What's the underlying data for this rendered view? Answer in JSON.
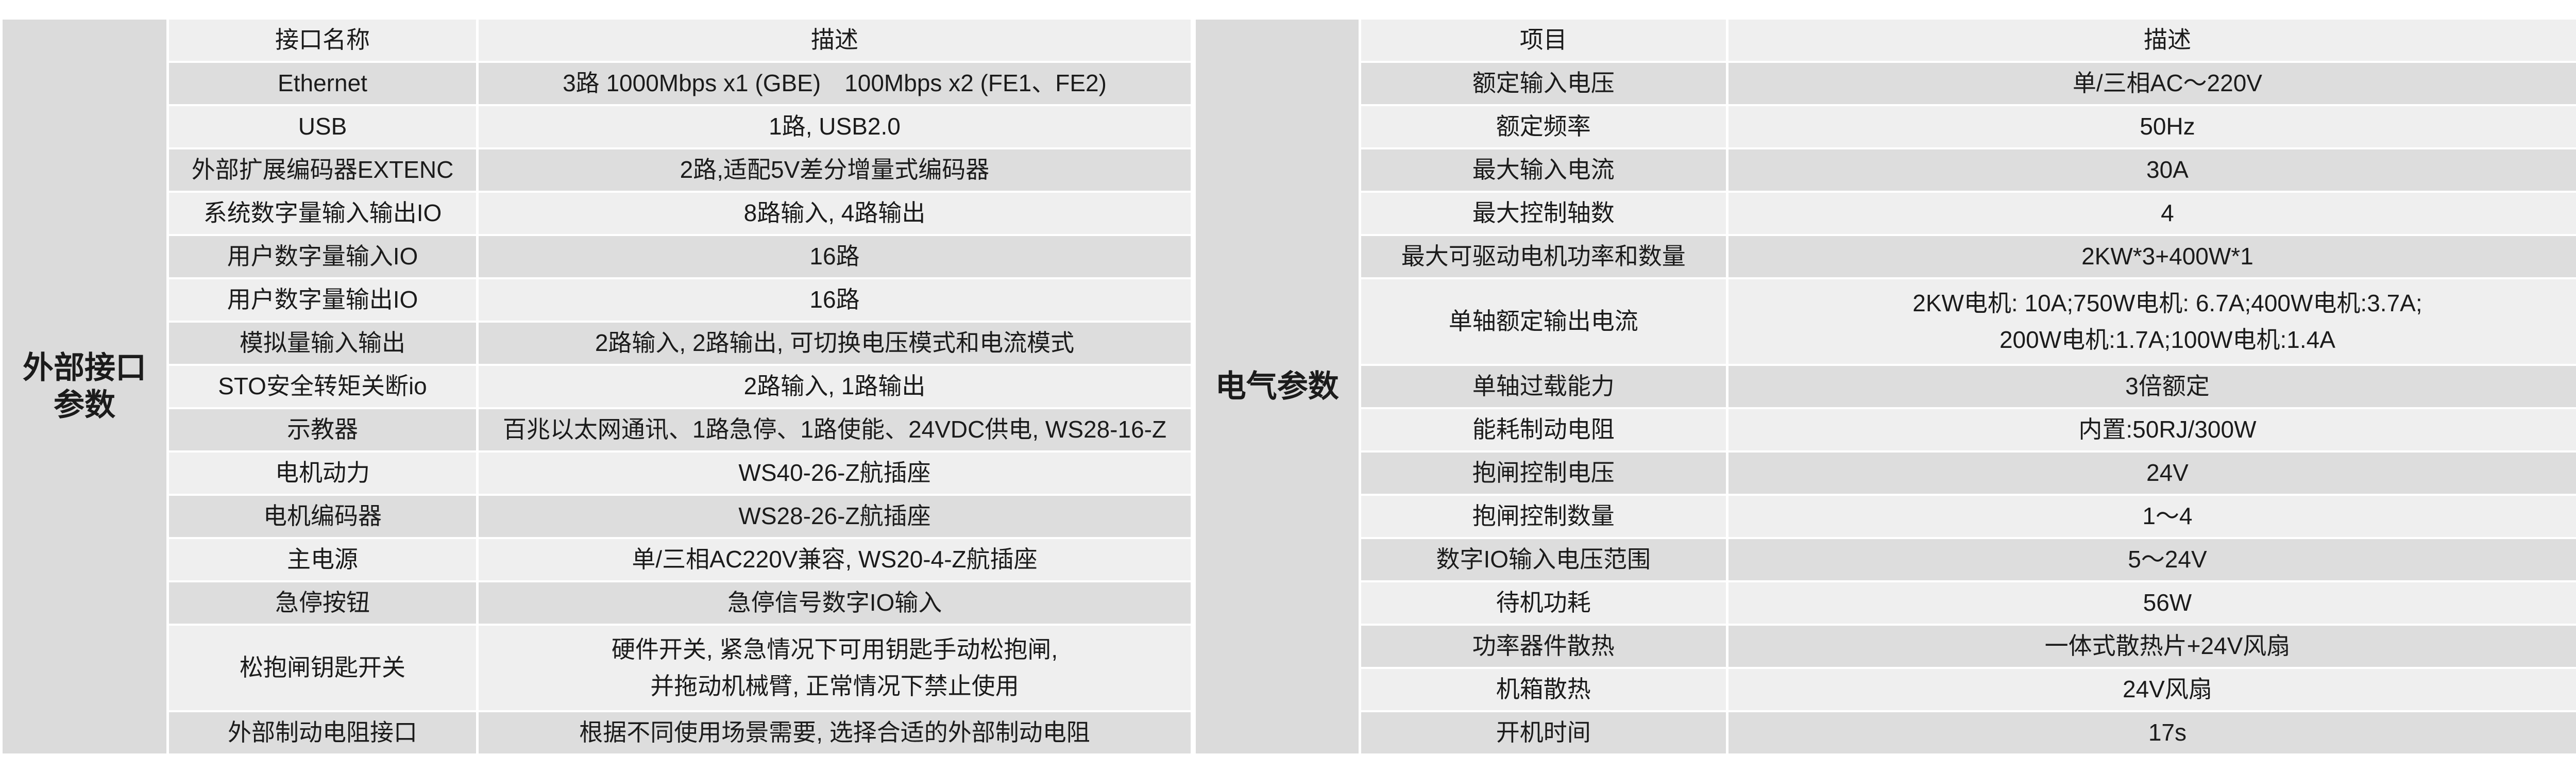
{
  "colors": {
    "background": "#ffffff",
    "row_light": "#efefef",
    "row_dark": "#dddddd",
    "section_column": "#dbdbdb",
    "separator": "#ffffff",
    "text": "#1b1b1b"
  },
  "left_table": {
    "section_label": "外部接口\n参数",
    "columns": [
      "接口名称",
      "描述"
    ],
    "rows": [
      {
        "name": "Ethernet",
        "desc": "3路 1000Mbps x1 (GBE)　100Mbps x2 (FE1、FE2)"
      },
      {
        "name": "USB",
        "desc": "1路, USB2.0"
      },
      {
        "name": "外部扩展编码器EXTENC",
        "desc": "2路,适配5V差分增量式编码器"
      },
      {
        "name": "系统数字量输入输出IO",
        "desc": "8路输入, 4路输出"
      },
      {
        "name": "用户数字量输入IO",
        "desc": "16路"
      },
      {
        "name": "用户数字量输出IO",
        "desc": "16路"
      },
      {
        "name": "模拟量输入输出",
        "desc": "2路输入, 2路输出, 可切换电压模式和电流模式"
      },
      {
        "name": "STO安全转矩关断io",
        "desc": "2路输入, 1路输出"
      },
      {
        "name": "示教器",
        "desc": "百兆以太网通讯、1路急停、1路使能、24VDC供电, WS28-16-Z"
      },
      {
        "name": "电机动力",
        "desc": "WS40-26-Z航插座"
      },
      {
        "name": "电机编码器",
        "desc": "WS28-26-Z航插座"
      },
      {
        "name": "主电源",
        "desc": "单/三相AC220V兼容, WS20-4-Z航插座"
      },
      {
        "name": "急停按钮",
        "desc": "急停信号数字IO输入"
      },
      {
        "name": "松抱闸钥匙开关",
        "desc": "硬件开关, 紧急情况下可用钥匙手动松抱闸,\n并拖动机械臂, 正常情况下禁止使用"
      },
      {
        "name": "外部制动电阻接口",
        "desc": "根据不同使用场景需要, 选择合适的外部制动电阻"
      }
    ]
  },
  "right_table": {
    "section_label": "电气参数",
    "columns": [
      "项目",
      "描述"
    ],
    "rows": [
      {
        "name": "额定输入电压",
        "desc": "单/三相AC～220V"
      },
      {
        "name": "额定频率",
        "desc": "50Hz"
      },
      {
        "name": "最大输入电流",
        "desc": "30A"
      },
      {
        "name": "最大控制轴数",
        "desc": "4"
      },
      {
        "name": "最大可驱动电机功率和数量",
        "desc": "2KW*3+400W*1"
      },
      {
        "name": "单轴额定输出电流",
        "desc": "2KW电机: 10A;750W电机: 6.7A;400W电机:3.7A;\n200W电机:1.7A;100W电机:1.4A"
      },
      {
        "name": "单轴过载能力",
        "desc": "3倍额定"
      },
      {
        "name": "能耗制动电阻",
        "desc": "内置:50RJ/300W"
      },
      {
        "name": "抱闸控制电压",
        "desc": "24V"
      },
      {
        "name": "抱闸控制数量",
        "desc": "1～4"
      },
      {
        "name": "数字IO输入电压范围",
        "desc": "5～24V"
      },
      {
        "name": "待机功耗",
        "desc": "56W"
      },
      {
        "name": "功率器件散热",
        "desc": "一体式散热片+24V风扇"
      },
      {
        "name": "机箱散热",
        "desc": "24V风扇"
      },
      {
        "name": "开机时间",
        "desc": "17s"
      }
    ]
  }
}
